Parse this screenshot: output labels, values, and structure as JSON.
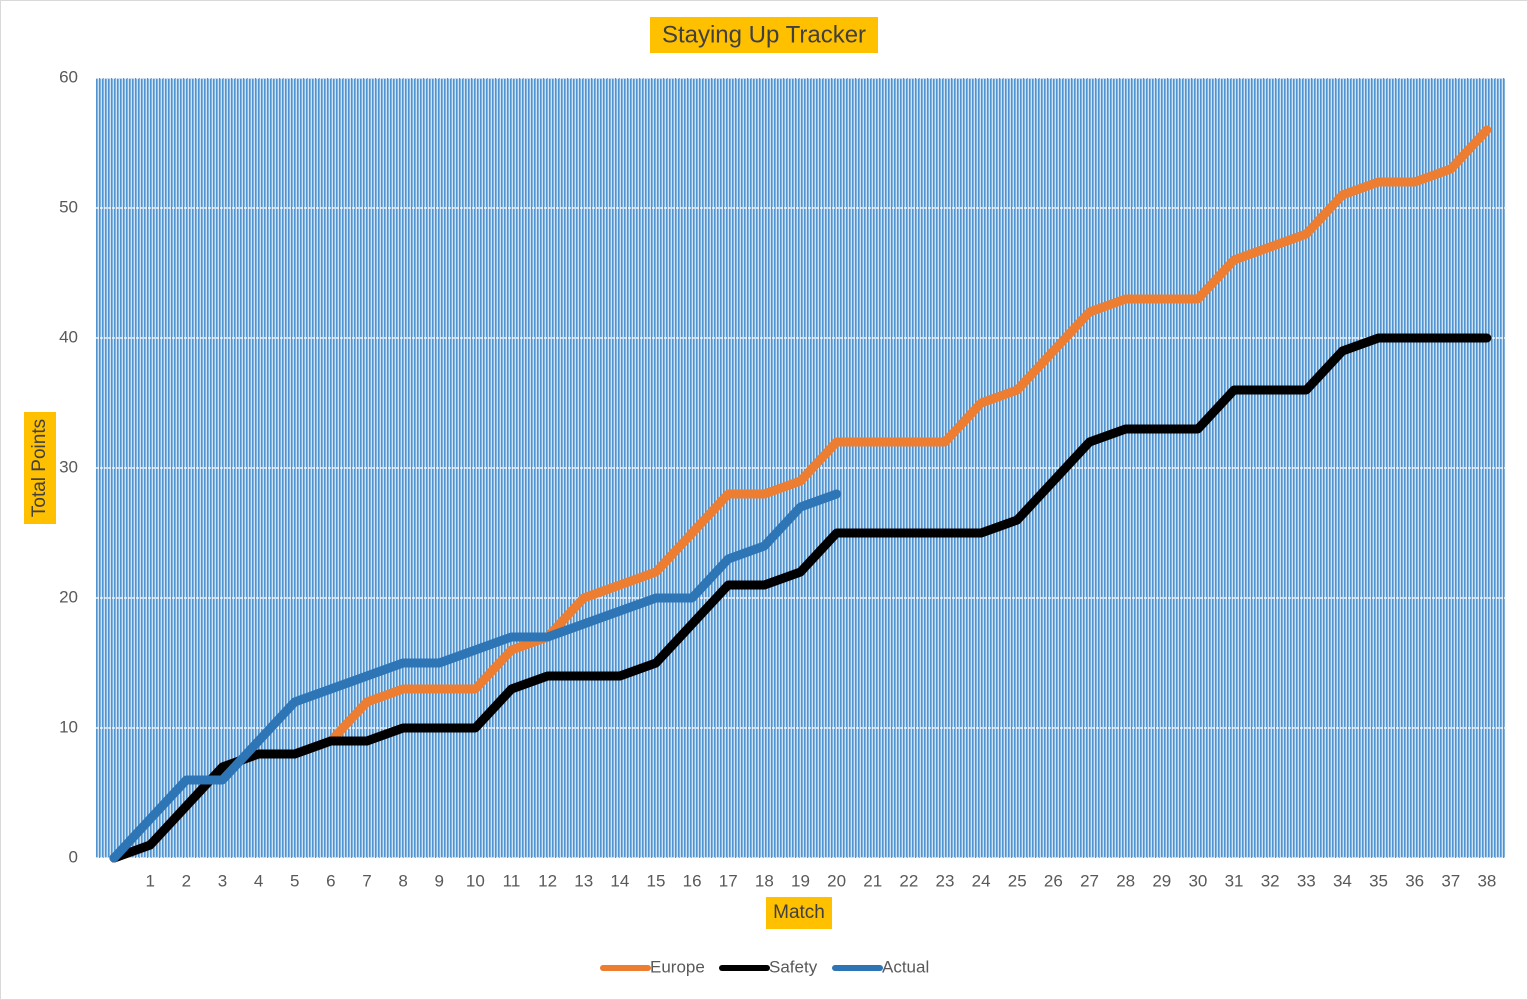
{
  "chart_data": {
    "type": "line",
    "title": "Staying Up Tracker",
    "x_label": "Match",
    "y_label": "Total Points",
    "categories": [
      null,
      "1",
      "2",
      "3",
      "4",
      "5",
      "6",
      "7",
      "8",
      "9",
      "10",
      "11",
      "12",
      "13",
      "14",
      "15",
      "16",
      "17",
      "18",
      "19",
      "20",
      "21",
      "22",
      "23",
      "24",
      "25",
      "26",
      "27",
      "28",
      "29",
      "30",
      "31",
      "32",
      "33",
      "34",
      "35",
      "36",
      "37",
      "38"
    ],
    "series": [
      {
        "name": "Europe",
        "color": "#ed7d31",
        "values": [
          0,
          1,
          4,
          7,
          8,
          8,
          9,
          12,
          13,
          13,
          13,
          16,
          17,
          20,
          21,
          22,
          25,
          28,
          28,
          29,
          32,
          32,
          32,
          32,
          35,
          36,
          39,
          42,
          43,
          43,
          43,
          46,
          47,
          48,
          51,
          52,
          52,
          53,
          56
        ]
      },
      {
        "name": "Safety",
        "color": "#000000",
        "values": [
          0,
          1,
          4,
          7,
          8,
          8,
          9,
          9,
          10,
          10,
          10,
          13,
          14,
          14,
          14,
          15,
          18,
          21,
          21,
          22,
          25,
          25,
          25,
          25,
          25,
          26,
          29,
          32,
          33,
          33,
          33,
          36,
          36,
          36,
          39,
          40,
          40,
          40,
          40
        ]
      },
      {
        "name": "Actual",
        "color": "#2e75b6",
        "values": [
          0,
          3,
          6,
          6,
          9,
          12,
          13,
          14,
          15,
          15,
          16,
          17,
          17,
          18,
          19,
          20,
          20,
          23,
          24,
          27,
          28,
          null,
          null,
          null,
          null,
          null,
          null,
          null,
          null,
          null,
          null,
          null,
          null,
          null,
          null,
          null,
          null,
          null,
          null
        ]
      }
    ],
    "ylim": [
      0,
      60
    ],
    "yticks": [
      0,
      10,
      20,
      30,
      40,
      50,
      60
    ],
    "grid": true,
    "legend": "bottom"
  }
}
